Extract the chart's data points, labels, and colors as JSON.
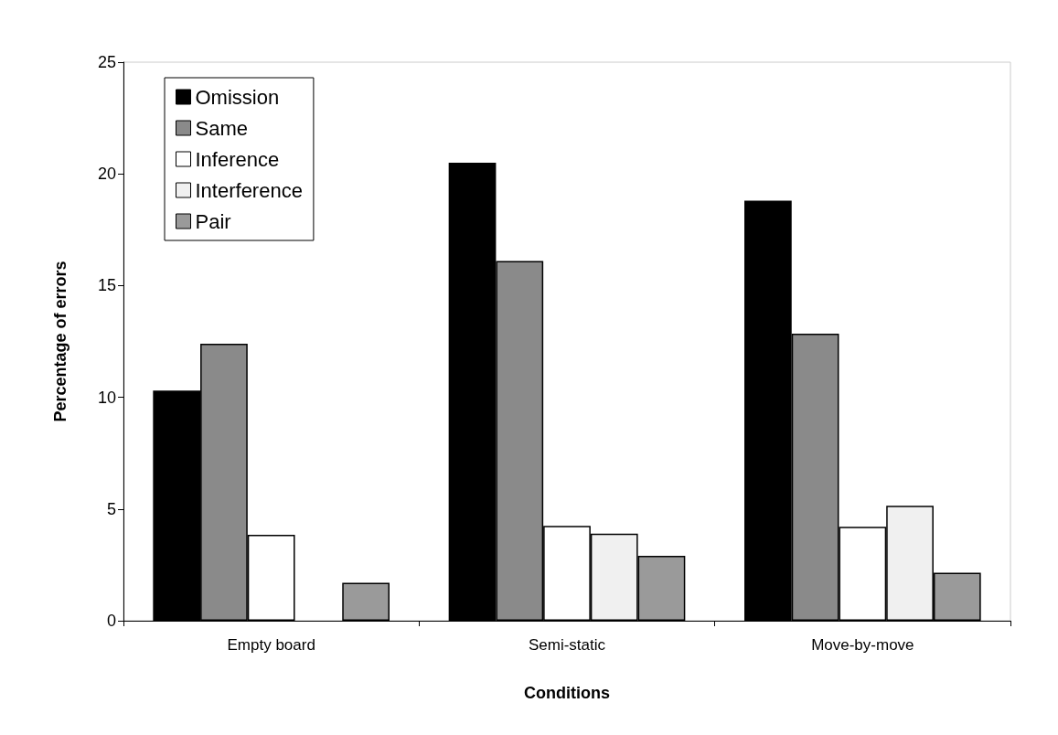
{
  "chart_data": {
    "type": "bar",
    "xlabel": "Conditions",
    "ylabel": "Percentage of errors",
    "categories": [
      "Empty board",
      "Semi-static",
      "Move-by-move"
    ],
    "series": [
      {
        "name": "Omission",
        "color": "#000000",
        "values": [
          10.3,
          20.5,
          18.8
        ]
      },
      {
        "name": "Same",
        "color": "#8a8a8a",
        "values": [
          12.4,
          16.1,
          12.85
        ]
      },
      {
        "name": "Inference",
        "color": "#ffffff",
        "values": [
          3.85,
          4.25,
          4.2
        ]
      },
      {
        "name": "Interference",
        "color": "#f0f0f0",
        "values": [
          null,
          3.9,
          5.15
        ]
      },
      {
        "name": "Pair",
        "color": "#9a9a9a",
        "values": [
          1.7,
          2.9,
          2.15
        ]
      }
    ],
    "ylim": [
      0,
      25
    ],
    "yticks": [
      0,
      5,
      10,
      15,
      20,
      25
    ],
    "grid": false,
    "legend": "top left"
  }
}
